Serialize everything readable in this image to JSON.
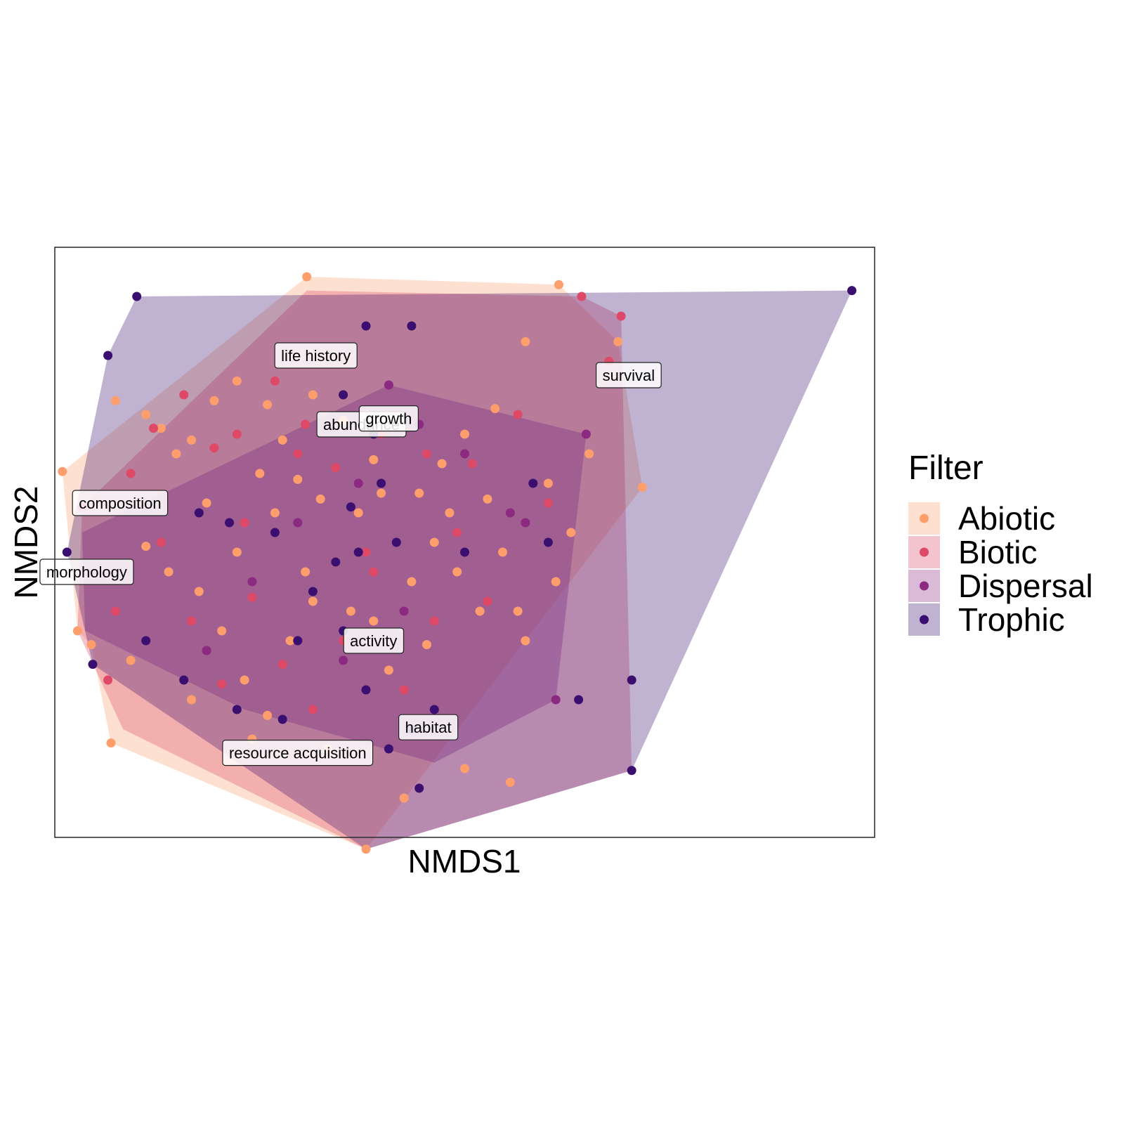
{
  "chart_data": {
    "type": "scatter",
    "title": "",
    "xlabel": "NMDS1",
    "ylabel": "NMDS2",
    "xlim": [
      -1.8,
      3.6
    ],
    "ylim": [
      -1.6,
      1.4
    ],
    "axis_ticks": false,
    "grid": false,
    "legend": {
      "title": "Filter",
      "placement": "right",
      "entries": [
        "Abiotic",
        "Biotic",
        "Dispersal",
        "Trophic"
      ]
    },
    "colors": {
      "Abiotic": "#FD9E6C",
      "Biotic": "#DE4968",
      "Dispersal": "#8C2981",
      "Trophic": "#3B0F70"
    },
    "hull_fill_opacity": 0.32,
    "series": [
      {
        "name": "Abiotic",
        "hull": [
          [
            -1.75,
            0.26
          ],
          [
            -0.14,
            1.25
          ],
          [
            1.52,
            1.21
          ],
          [
            1.91,
            0.92
          ],
          [
            2.07,
            0.18
          ],
          [
            0.25,
            -1.66
          ],
          [
            -1.43,
            -1.12
          ],
          [
            -1.56,
            -0.62
          ],
          [
            -1.65,
            -0.55
          ]
        ],
        "points": [
          [
            -1.75,
            0.26
          ],
          [
            -0.14,
            1.25
          ],
          [
            1.52,
            1.21
          ],
          [
            1.91,
            0.92
          ],
          [
            2.07,
            0.18
          ],
          [
            0.25,
            -1.66
          ],
          [
            -1.43,
            -1.12
          ],
          [
            -1.56,
            -0.62
          ],
          [
            -1.65,
            -0.55
          ],
          [
            -1.4,
            0.62
          ],
          [
            -1.2,
            0.55
          ],
          [
            -1.1,
            0.48
          ],
          [
            -1.0,
            0.35
          ],
          [
            -0.9,
            0.42
          ],
          [
            -0.75,
            0.62
          ],
          [
            -0.6,
            0.72
          ],
          [
            -0.4,
            0.6
          ],
          [
            -0.3,
            0.42
          ],
          [
            -0.2,
            0.22
          ],
          [
            -0.1,
            0.65
          ],
          [
            0.1,
            0.52
          ],
          [
            0.3,
            0.32
          ],
          [
            0.45,
            0.5
          ],
          [
            0.6,
            0.15
          ],
          [
            0.75,
            0.3
          ],
          [
            0.9,
            0.45
          ],
          [
            1.1,
            0.58
          ],
          [
            1.3,
            0.92
          ],
          [
            1.45,
            0.2
          ],
          [
            1.72,
            0.35
          ],
          [
            -1.2,
            -0.12
          ],
          [
            -1.05,
            -0.25
          ],
          [
            -0.85,
            -0.35
          ],
          [
            -0.7,
            -0.55
          ],
          [
            -0.55,
            -0.8
          ],
          [
            -0.4,
            -0.98
          ],
          [
            -0.25,
            -0.6
          ],
          [
            -0.1,
            -0.4
          ],
          [
            0.05,
            -0.2
          ],
          [
            0.2,
            0.05
          ],
          [
            0.3,
            -0.5
          ],
          [
            0.4,
            -0.75
          ],
          [
            0.55,
            -0.3
          ],
          [
            0.7,
            -0.1
          ],
          [
            0.85,
            -0.25
          ],
          [
            1.0,
            -0.45
          ],
          [
            1.15,
            -0.15
          ],
          [
            1.3,
            -0.6
          ],
          [
            1.5,
            -0.3
          ],
          [
            1.6,
            -0.05
          ],
          [
            0.9,
            -1.25
          ],
          [
            1.2,
            -1.32
          ],
          [
            0.5,
            -1.4
          ],
          [
            0.0,
            -1.15
          ],
          [
            -0.5,
            -1.1
          ],
          [
            -0.9,
            -0.9
          ],
          [
            -1.3,
            -0.7
          ],
          [
            -0.8,
            0.1
          ],
          [
            -0.6,
            -0.15
          ],
          [
            -0.35,
            0.05
          ],
          [
            -0.15,
            -0.25
          ],
          [
            0.15,
            -0.45
          ],
          [
            0.35,
            0.15
          ],
          [
            0.65,
            -0.62
          ],
          [
            0.8,
            0.05
          ],
          [
            1.05,
            0.12
          ],
          [
            1.25,
            -0.45
          ],
          [
            -0.45,
            0.25
          ],
          [
            -0.05,
            0.12
          ],
          [
            0.25,
            0.55
          ]
        ]
      },
      {
        "name": "Biotic",
        "hull": [
          [
            -1.62,
            0.08
          ],
          [
            -0.14,
            1.18
          ],
          [
            1.67,
            1.15
          ],
          [
            1.93,
            1.05
          ],
          [
            2.0,
            -1.26
          ],
          [
            0.25,
            -1.66
          ],
          [
            -1.35,
            -1.05
          ],
          [
            -1.65,
            -0.55
          ]
        ],
        "points": [
          [
            -1.62,
            0.08
          ],
          [
            1.67,
            1.15
          ],
          [
            1.93,
            1.05
          ],
          [
            1.85,
            0.82
          ],
          [
            -1.3,
            0.25
          ],
          [
            -1.15,
            0.48
          ],
          [
            -0.95,
            0.65
          ],
          [
            -0.75,
            0.38
          ],
          [
            -0.55,
            0.0
          ],
          [
            -0.35,
            0.72
          ],
          [
            -0.15,
            0.5
          ],
          [
            0.05,
            0.28
          ],
          [
            0.25,
            -0.15
          ],
          [
            0.45,
            0.55
          ],
          [
            0.65,
            0.35
          ],
          [
            0.85,
            -0.05
          ],
          [
            1.05,
            -0.4
          ],
          [
            1.25,
            0.55
          ],
          [
            1.45,
            0.1
          ],
          [
            -1.1,
            -0.1
          ],
          [
            -0.9,
            -0.5
          ],
          [
            -0.7,
            -0.82
          ],
          [
            -0.5,
            -0.38
          ],
          [
            -0.3,
            -0.72
          ],
          [
            -0.1,
            -0.95
          ],
          [
            0.1,
            -0.6
          ],
          [
            0.3,
            -0.25
          ],
          [
            0.5,
            -0.85
          ],
          [
            0.7,
            -0.5
          ],
          [
            -1.4,
            -0.45
          ],
          [
            -1.45,
            -0.8
          ],
          [
            -0.6,
            0.45
          ],
          [
            0.35,
            0.45
          ],
          [
            0.95,
            0.3
          ],
          [
            -0.2,
            0.35
          ]
        ]
      },
      {
        "name": "Dispersal",
        "hull": [
          [
            -1.62,
            -0.05
          ],
          [
            0.4,
            0.7
          ],
          [
            1.7,
            0.45
          ],
          [
            1.5,
            -0.9
          ],
          [
            0.7,
            -1.22
          ],
          [
            -0.55,
            -0.95
          ],
          [
            -1.6,
            -0.55
          ]
        ],
        "points": [
          [
            1.7,
            0.45
          ],
          [
            1.5,
            -0.9
          ],
          [
            0.4,
            0.7
          ],
          [
            1.2,
            0.05
          ],
          [
            0.9,
            0.35
          ],
          [
            0.6,
            0.5
          ],
          [
            0.2,
            0.2
          ],
          [
            -0.2,
            0.0
          ],
          [
            -0.5,
            -0.3
          ],
          [
            0.1,
            -0.7
          ],
          [
            0.5,
            -0.45
          ],
          [
            1.3,
            0.0
          ],
          [
            -0.8,
            -0.65
          ]
        ]
      },
      {
        "name": "Trophic",
        "hull": [
          [
            -1.26,
            1.15
          ],
          [
            3.45,
            1.18
          ],
          [
            2.0,
            -1.26
          ],
          [
            0.25,
            -1.66
          ],
          [
            -1.55,
            -0.72
          ],
          [
            -1.72,
            -0.15
          ],
          [
            -1.45,
            0.85
          ]
        ],
        "points": [
          [
            -1.26,
            1.15
          ],
          [
            3.45,
            1.18
          ],
          [
            2.0,
            -1.26
          ],
          [
            -1.55,
            -0.72
          ],
          [
            -1.72,
            -0.15
          ],
          [
            -1.45,
            0.85
          ],
          [
            0.25,
            1.0
          ],
          [
            0.55,
            1.0
          ],
          [
            0.1,
            0.65
          ],
          [
            0.3,
            0.45
          ],
          [
            0.35,
            0.2
          ],
          [
            0.45,
            -0.1
          ],
          [
            1.35,
            0.2
          ],
          [
            1.45,
            -0.1
          ],
          [
            2.0,
            -0.8
          ],
          [
            1.65,
            -0.9
          ],
          [
            -0.85,
            0.05
          ],
          [
            -0.65,
            0.0
          ],
          [
            -0.35,
            -0.05
          ],
          [
            -0.1,
            -0.35
          ],
          [
            0.1,
            -0.55
          ],
          [
            0.25,
            -0.85
          ],
          [
            0.4,
            -1.15
          ],
          [
            0.55,
            -1.05
          ],
          [
            0.7,
            -0.95
          ],
          [
            -1.2,
            -0.6
          ],
          [
            -0.95,
            -0.8
          ],
          [
            -0.6,
            -0.95
          ],
          [
            -0.3,
            -1.0
          ],
          [
            0.15,
            0.08
          ],
          [
            0.9,
            -0.15
          ],
          [
            0.05,
            -0.2
          ],
          [
            -0.2,
            -0.6
          ],
          [
            0.6,
            -1.35
          ],
          [
            0.2,
            -0.15
          ]
        ]
      }
    ],
    "annotations": [
      {
        "text": "life history",
        "x": -0.08,
        "y": 0.85
      },
      {
        "text": "survival",
        "x": 1.98,
        "y": 0.75
      },
      {
        "text": "abundance",
        "x": 0.22,
        "y": 0.5
      },
      {
        "text": "growth",
        "x": 0.4,
        "y": 0.53
      },
      {
        "text": "composition",
        "x": -1.37,
        "y": 0.1
      },
      {
        "text": "morphology",
        "x": -1.59,
        "y": -0.25
      },
      {
        "text": "activity",
        "x": 0.3,
        "y": -0.6
      },
      {
        "text": "habitat",
        "x": 0.66,
        "y": -1.04
      },
      {
        "text": "resource acquisition",
        "x": -0.2,
        "y": -1.17
      }
    ]
  }
}
